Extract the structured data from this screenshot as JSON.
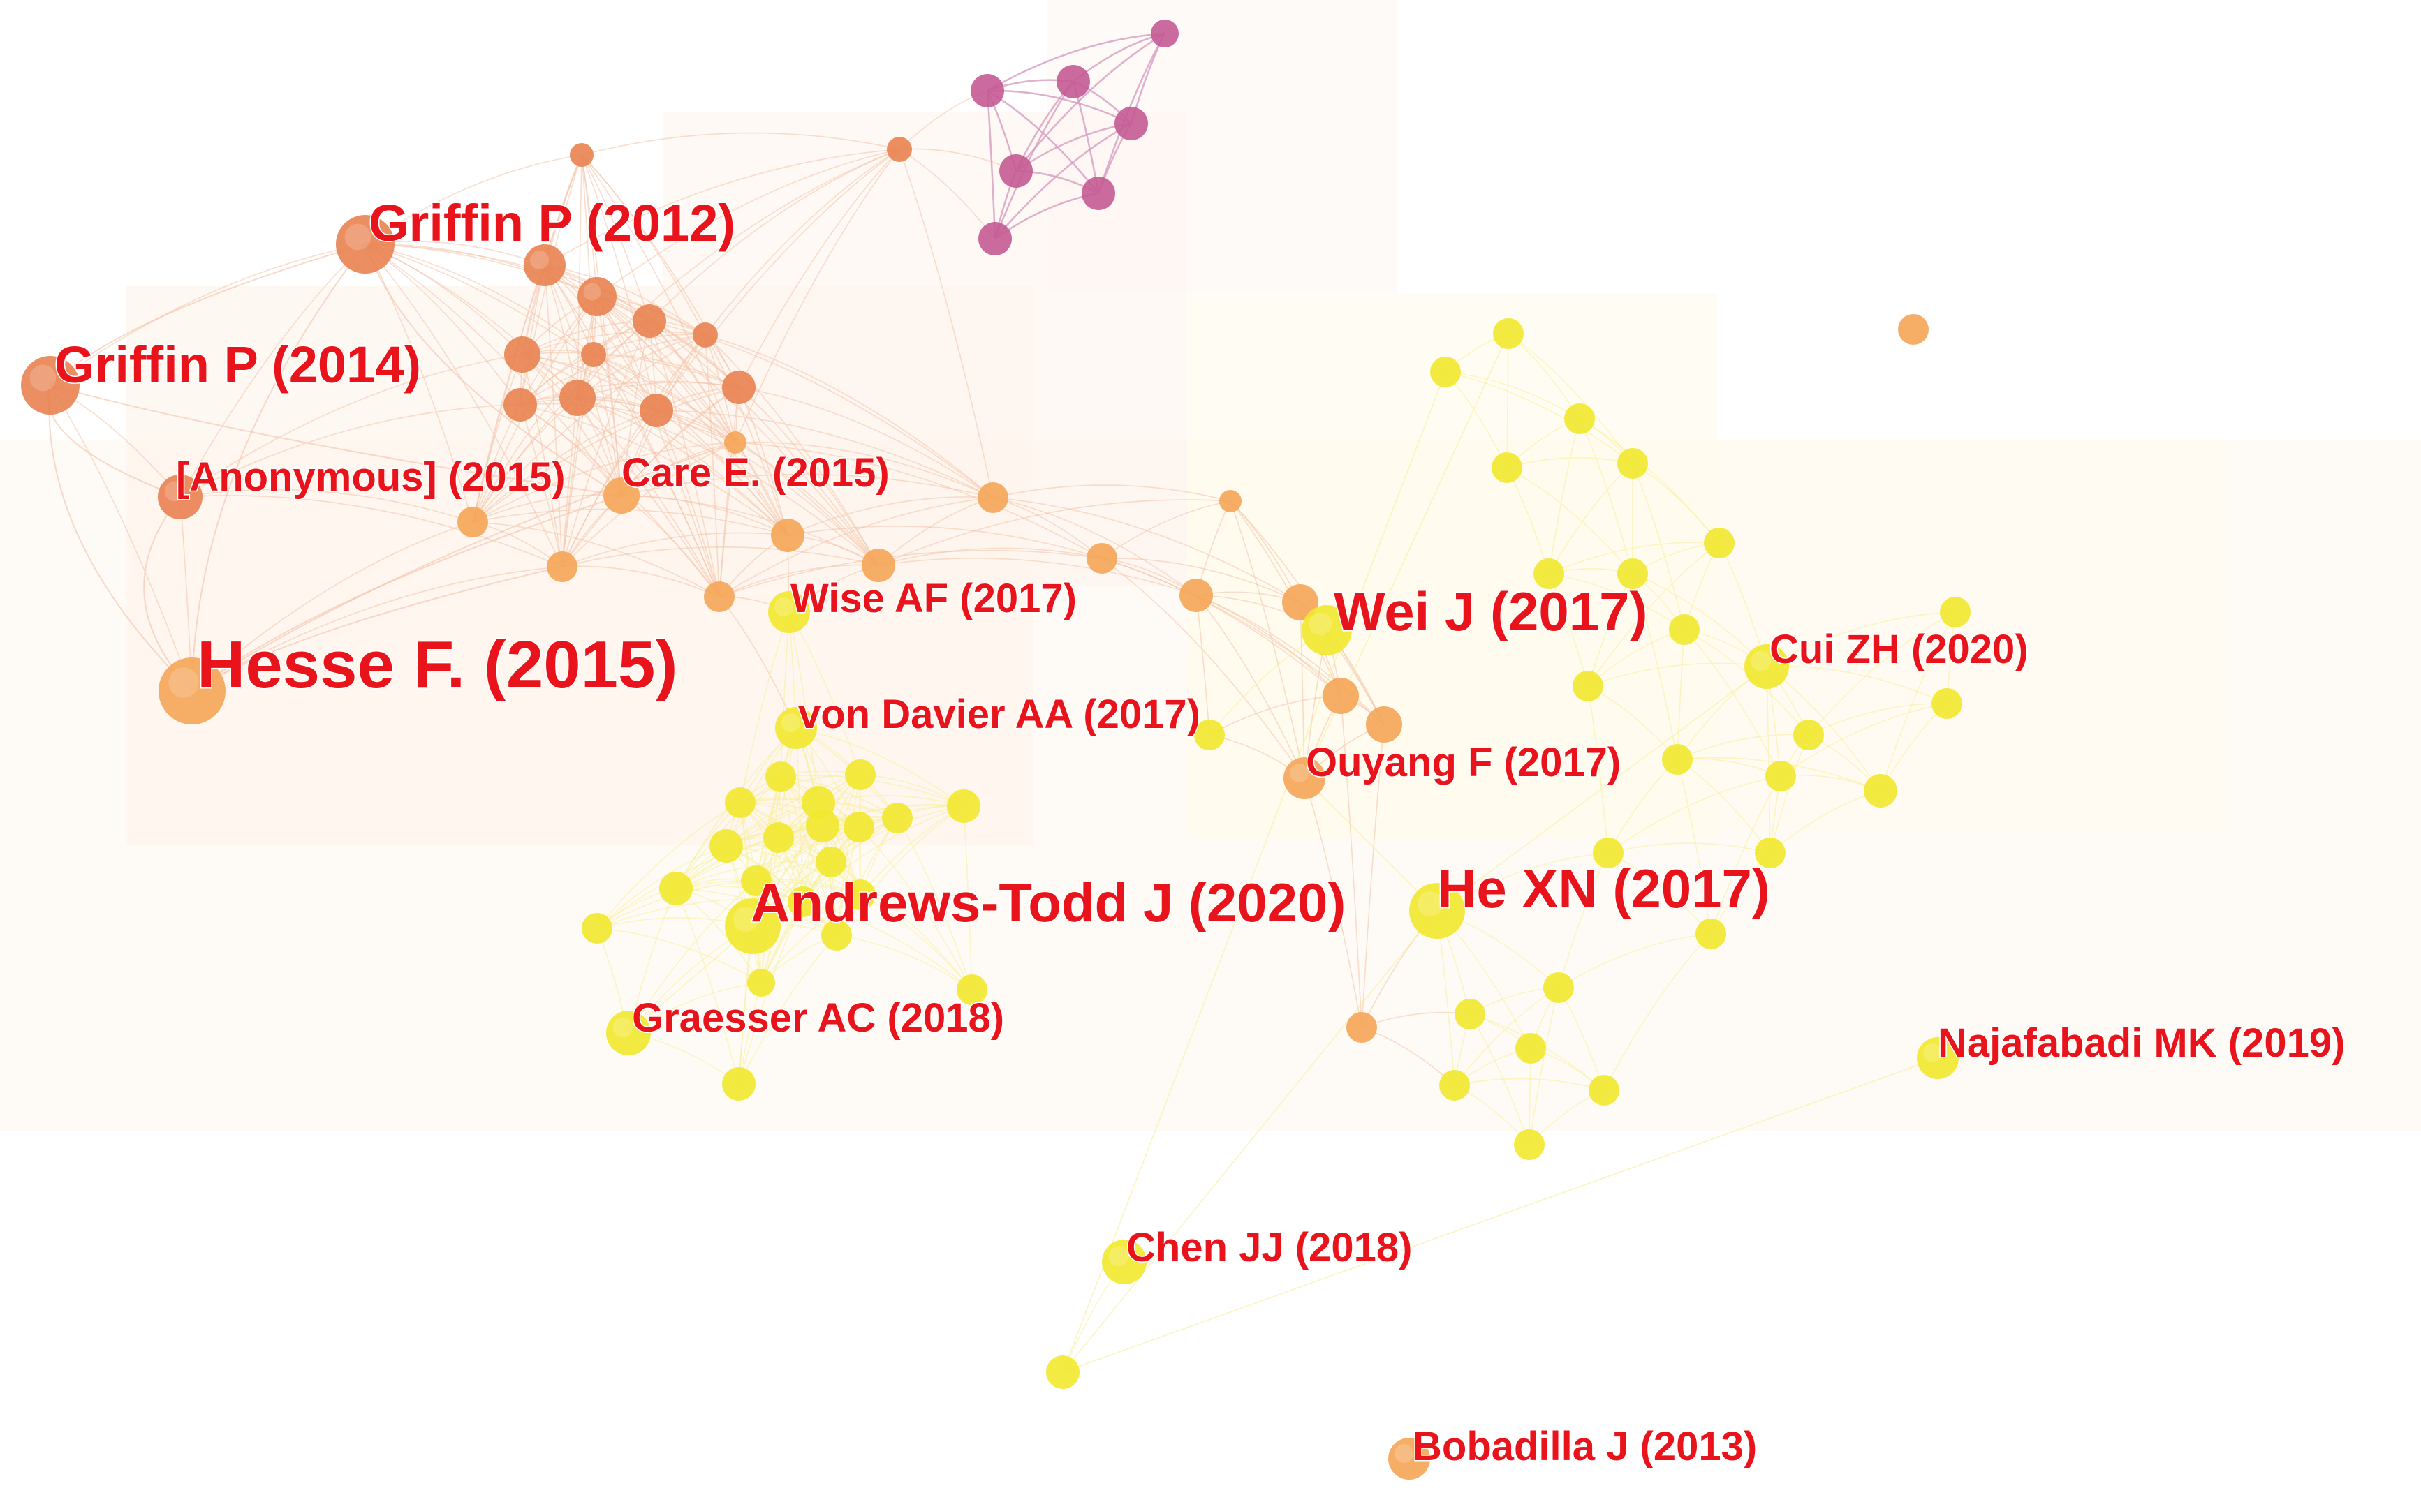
{
  "colors": {
    "cluster_red": "#e98250",
    "cluster_orange": "#f5a556",
    "cluster_yellow": "#f2e82e",
    "cluster_purple": "#c45a93",
    "label": "#e8131b",
    "edge_red": "#f3c2a8",
    "edge_yellow": "#f7ee9a",
    "edge_purple": "#d79cc0"
  },
  "labels": [
    {
      "id": "griffin2012",
      "text": "Griffin P (2012)"
    },
    {
      "id": "griffin2014",
      "text": "Griffin P (2014)"
    },
    {
      "id": "anonymous2015",
      "text": "[Anonymous] (2015)"
    },
    {
      "id": "care2015",
      "text": "Care E. (2015)"
    },
    {
      "id": "hesse2015",
      "text": "Hesse F. (2015)"
    },
    {
      "id": "wise2017",
      "text": "Wise AF (2017)"
    },
    {
      "id": "vondavier2017",
      "text": "von Davier AA (2017)"
    },
    {
      "id": "wei2017",
      "text": "Wei J (2017)"
    },
    {
      "id": "cui2020",
      "text": "Cui ZH (2020)"
    },
    {
      "id": "ouyang2017",
      "text": "Ouyang F (2017)"
    },
    {
      "id": "andrewstodd2020",
      "text": "Andrews-Todd J (2020)"
    },
    {
      "id": "hexn2017",
      "text": "He XN (2017)"
    },
    {
      "id": "graesser2018",
      "text": "Graesser AC (2018)"
    },
    {
      "id": "najafabadi2019",
      "text": "Najafabadi MK (2019)"
    },
    {
      "id": "chen2018",
      "text": "Chen JJ (2018)"
    },
    {
      "id": "bobadilla2013",
      "text": "Bobadilla J (2013)"
    }
  ]
}
